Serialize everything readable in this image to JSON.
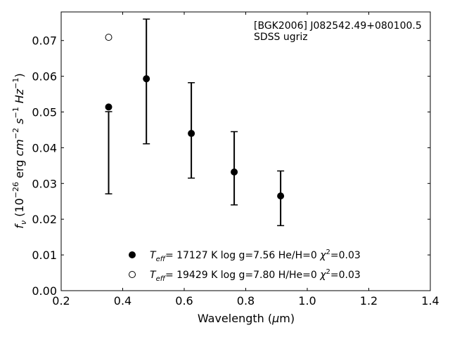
{
  "chart_data": {
    "type": "scatter",
    "title": "",
    "xlabel": "Wavelength (μm)",
    "ylabel": "fν (10⁻²⁶ erg cm⁻² s⁻¹ Hz⁻¹)",
    "xlim": [
      0.2,
      1.4
    ],
    "ylim": [
      0.0,
      0.078
    ],
    "xticks": [
      "0.2",
      "0.4",
      "0.6",
      "0.8",
      "1.0",
      "1.2",
      "1.4"
    ],
    "yticks": [
      "0.00",
      "0.01",
      "0.02",
      "0.03",
      "0.04",
      "0.05",
      "0.06",
      "0.07"
    ],
    "annotation": {
      "line1": "[BGK2006] J082542.49+080100.5",
      "line2": "SDSS ugriz"
    },
    "observed": {
      "name": "",
      "points": [
        {
          "x": 0.3543,
          "low": 0.0271,
          "high": 0.0501
        },
        {
          "x": 0.477,
          "low": 0.0411,
          "high": 0.076
        },
        {
          "x": 0.6231,
          "low": 0.0315,
          "high": 0.0582
        },
        {
          "x": 0.7625,
          "low": 0.024,
          "high": 0.0445
        },
        {
          "x": 0.9134,
          "low": 0.0182,
          "high": 0.0335
        }
      ]
    },
    "series": [
      {
        "name": "Teff= 17127 K  log g=7.56  He/H=0  χ²=0.03",
        "marker": "filled",
        "points": [
          {
            "x": 0.3543,
            "y": 0.0514
          },
          {
            "x": 0.477,
            "y": 0.0593
          },
          {
            "x": 0.6231,
            "y": 0.044
          },
          {
            "x": 0.7625,
            "y": 0.0332
          },
          {
            "x": 0.9134,
            "y": 0.0265
          }
        ]
      },
      {
        "name": "Teff= 19429 K  log g=7.80  H/He=0  χ²=0.03",
        "marker": "open",
        "points": [
          {
            "x": 0.3543,
            "y": 0.0709
          }
        ]
      }
    ],
    "legend": {
      "placement": "lower-center",
      "entries": [
        {
          "prefix": "T",
          "sub": "eff",
          "text": "= 17127 K  log g=7.56  He/H=0  ",
          "chi": "χ",
          "sup": "2",
          "tail": "=0.03"
        },
        {
          "prefix": "T",
          "sub": "eff",
          "text": "= 19429 K  log g=7.80  H/He=0  ",
          "chi": "χ",
          "sup": "2",
          "tail": "=0.03"
        }
      ]
    },
    "grid": false
  }
}
